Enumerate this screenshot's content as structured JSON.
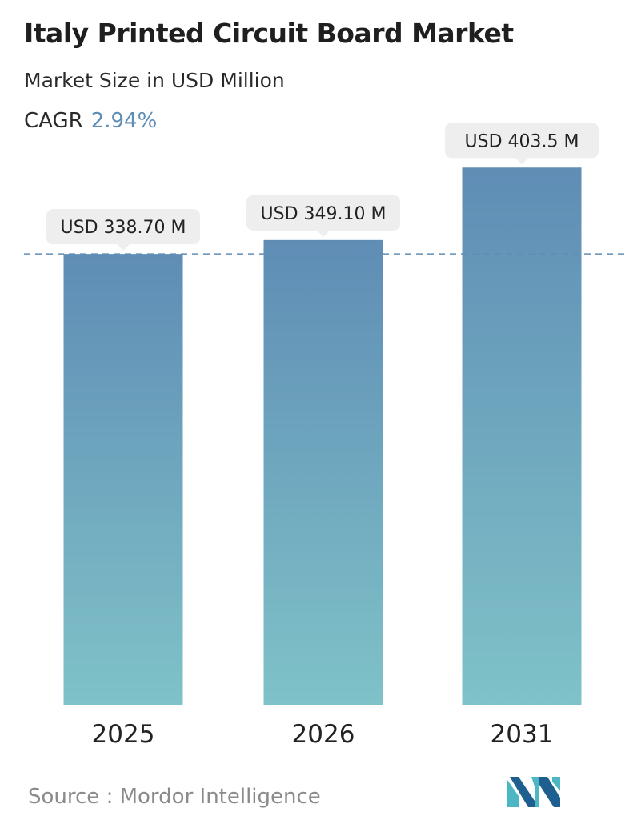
{
  "header": {
    "title": "Italy Printed Circuit Board Market",
    "subtitle": "Market Size in USD Million",
    "cagr_label": "CAGR",
    "cagr_value": "2.94%"
  },
  "colors": {
    "bar_top": "#5f8db5",
    "bar_bottom": "#7fc2c8",
    "cagr": "#5e8db5",
    "reference_line": "#5f8db5",
    "callout_bg": "#eeeeee",
    "logo_dark": "#1f5f8f",
    "logo_light": "#4cb6c3"
  },
  "chart_data": {
    "type": "bar",
    "categories": [
      "2025",
      "2026",
      "2031"
    ],
    "values": [
      338.7,
      349.1,
      403.5
    ],
    "data_labels": [
      "USD 338.70 M",
      "USD 349.10 M",
      "USD 403.5 M"
    ],
    "reference_line": {
      "value": 338.7,
      "style": "dashed"
    },
    "ylim": [
      0,
      420
    ],
    "grid": false,
    "legend": "none"
  },
  "footer": {
    "source": "Source :  Mordor Intelligence",
    "logo_icon": "mordor-intelligence-logo"
  }
}
